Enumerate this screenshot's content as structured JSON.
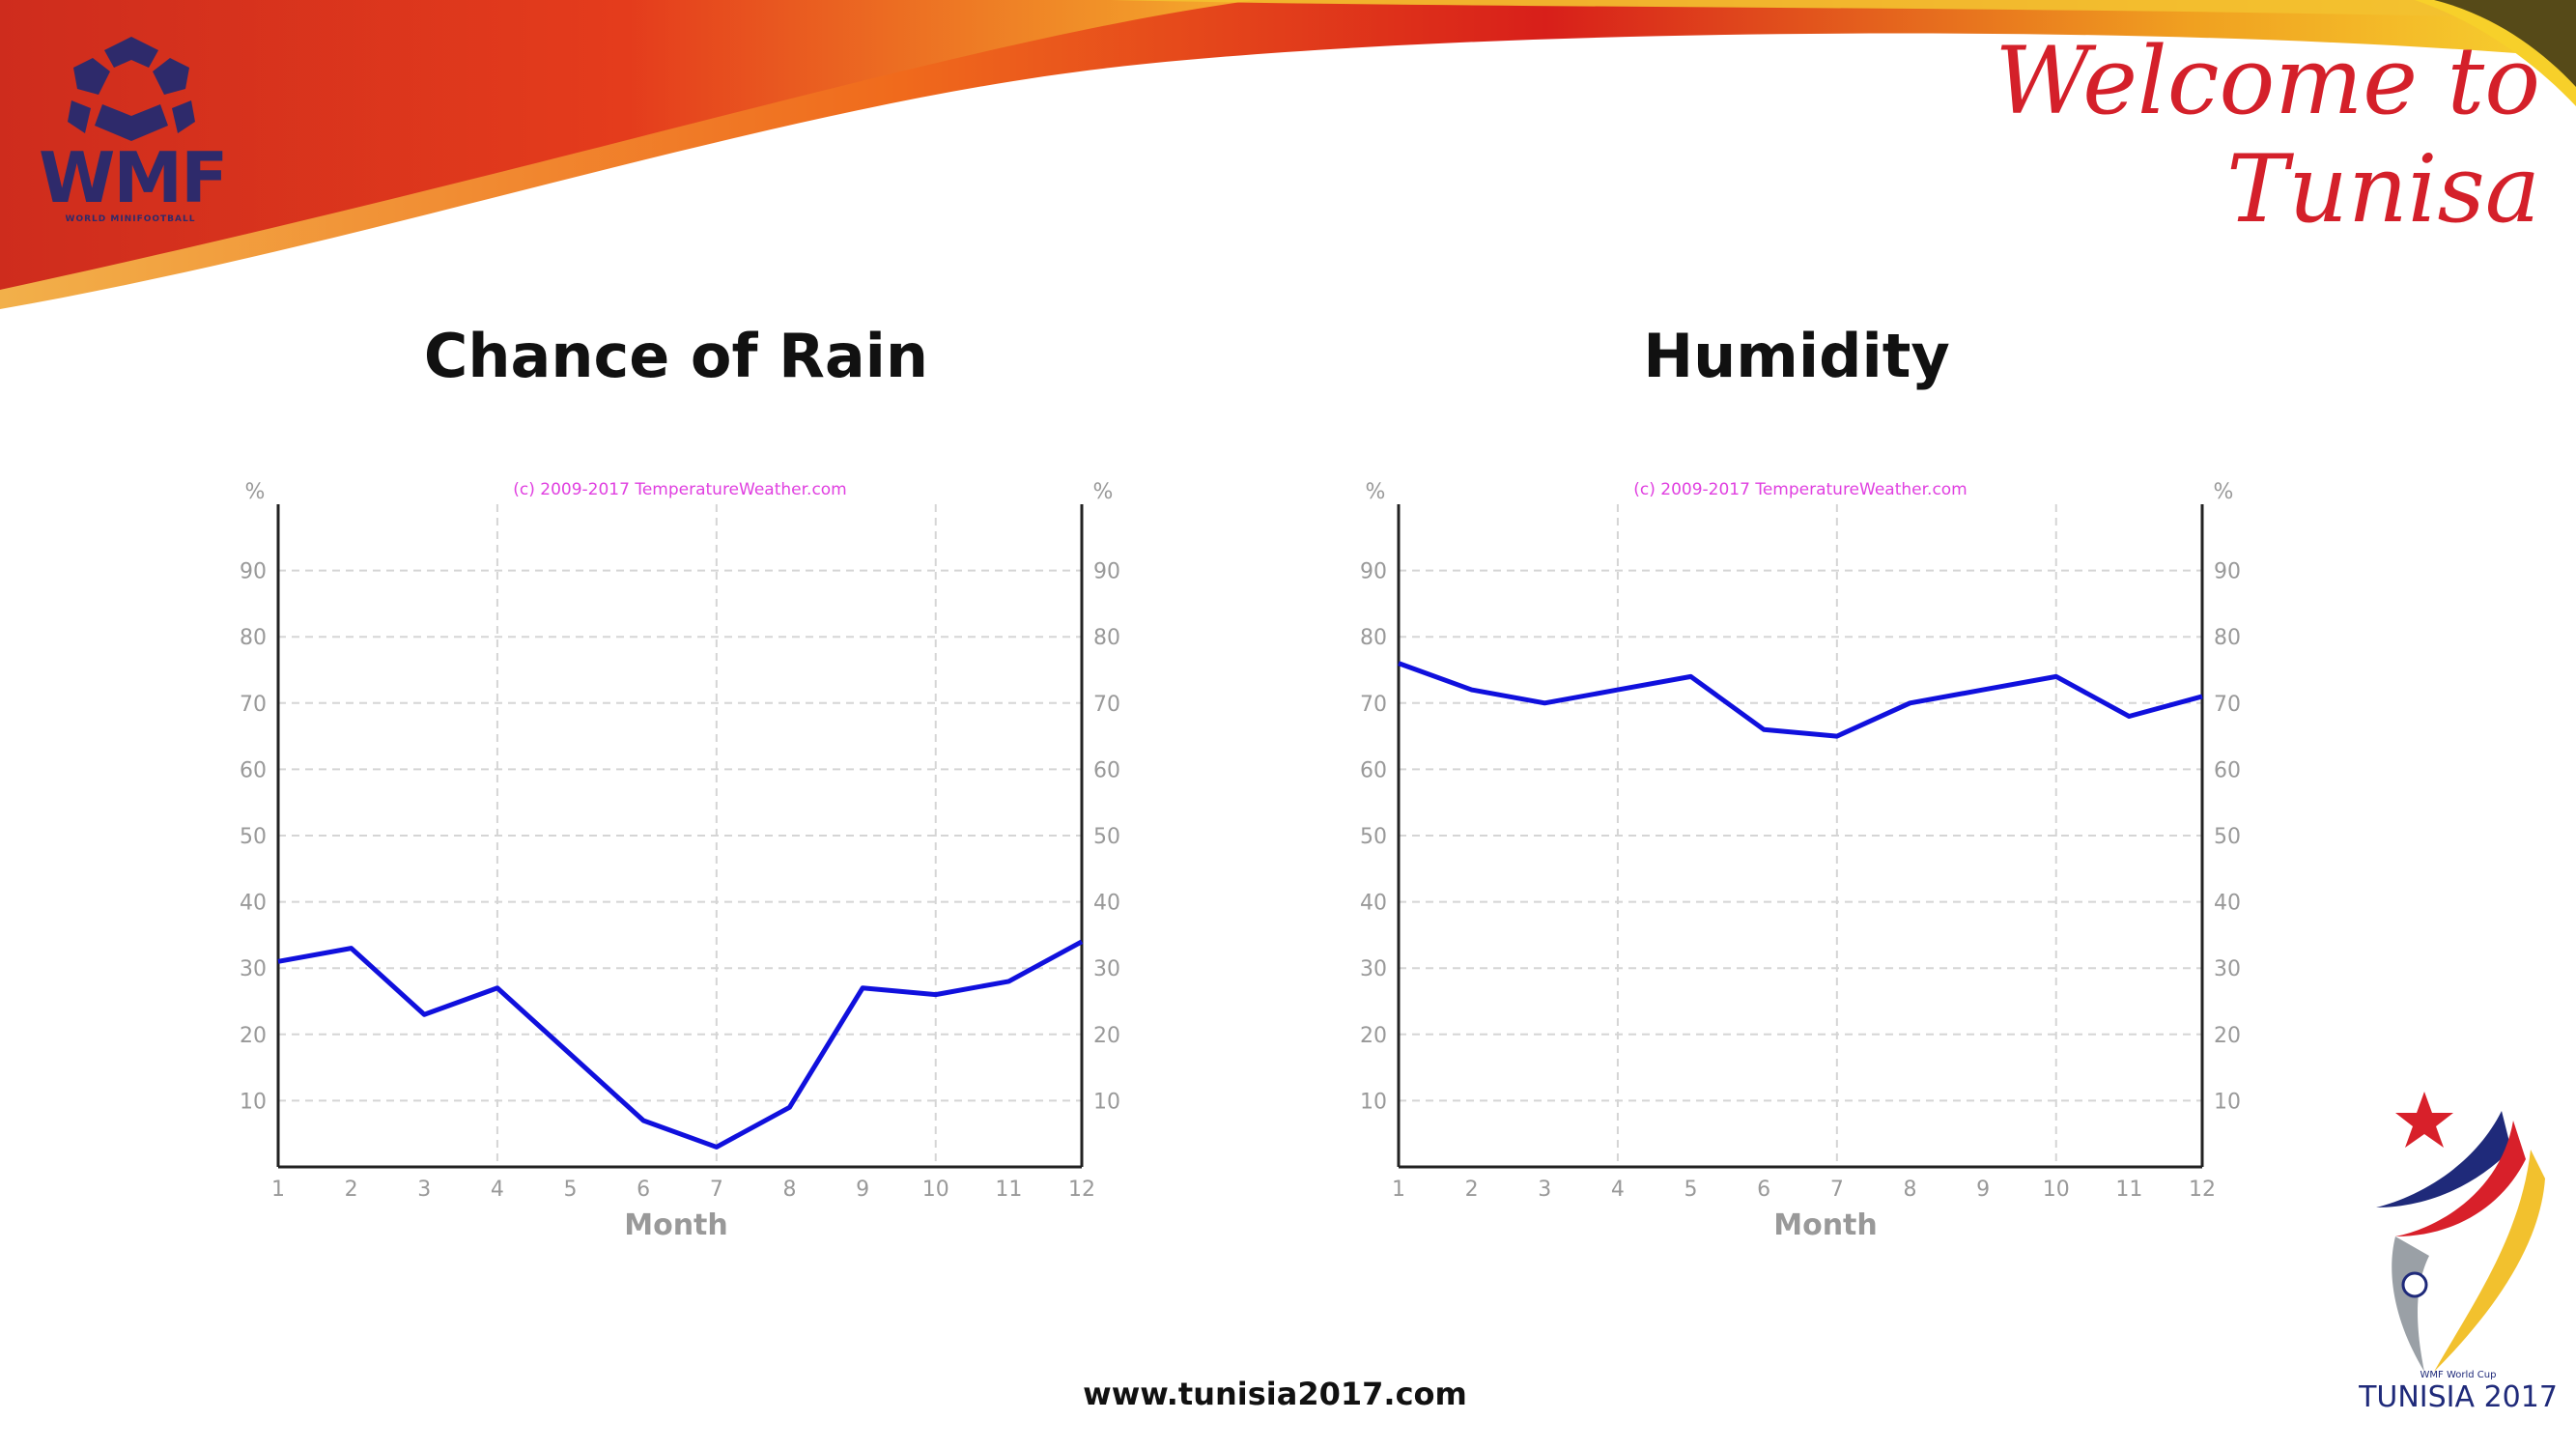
{
  "header": {
    "logo_text": "WMF",
    "logo_subtext": "WORLD MINIFOOTBALL",
    "welcome": "Welcome to Tunisa"
  },
  "footer": {
    "url": "www.tunisia2017.com",
    "logo_caption": "WMF World Cup",
    "logo_text": "TUNISIA 2017"
  },
  "colors": {
    "line": "#1010dd",
    "grid": "#d5d5d5",
    "axis": "#222222",
    "tick_label": "#999999",
    "watermark": "#e040e0",
    "title": "#111111",
    "welcome": "#d4202a"
  },
  "chart_data": [
    {
      "type": "line",
      "title": "Chance of Rain",
      "xlabel": "Month",
      "ylabel": "%",
      "ylabel_right": "%",
      "watermark": "(c) 2009-2017 TemperatureWeather.com",
      "x": [
        1,
        2,
        3,
        4,
        5,
        6,
        7,
        8,
        9,
        10,
        11,
        12
      ],
      "x_ticks": [
        "1",
        "2",
        "3",
        "4",
        "5",
        "6",
        "7",
        "8",
        "9",
        "10",
        "11",
        "12"
      ],
      "y_ticks": [
        "10",
        "20",
        "30",
        "40",
        "50",
        "60",
        "70",
        "80",
        "90"
      ],
      "ylim": [
        0,
        100
      ],
      "grid": true,
      "series": [
        {
          "values": [
            31,
            33,
            23,
            27,
            17,
            7,
            3,
            9,
            27,
            26,
            28,
            34
          ]
        }
      ]
    },
    {
      "type": "line",
      "title": "Humidity",
      "xlabel": "Month",
      "ylabel": "%",
      "ylabel_right": "%",
      "watermark": "(c) 2009-2017 TemperatureWeather.com",
      "x": [
        1,
        2,
        3,
        4,
        5,
        6,
        7,
        8,
        9,
        10,
        11,
        12
      ],
      "x_ticks": [
        "1",
        "2",
        "3",
        "4",
        "5",
        "6",
        "7",
        "8",
        "9",
        "10",
        "11",
        "12"
      ],
      "y_ticks": [
        "10",
        "20",
        "30",
        "40",
        "50",
        "60",
        "70",
        "80",
        "90"
      ],
      "ylim": [
        0,
        100
      ],
      "grid": true,
      "series": [
        {
          "values": [
            76,
            72,
            70,
            72,
            74,
            66,
            65,
            70,
            72,
            74,
            68,
            71
          ]
        }
      ]
    }
  ]
}
